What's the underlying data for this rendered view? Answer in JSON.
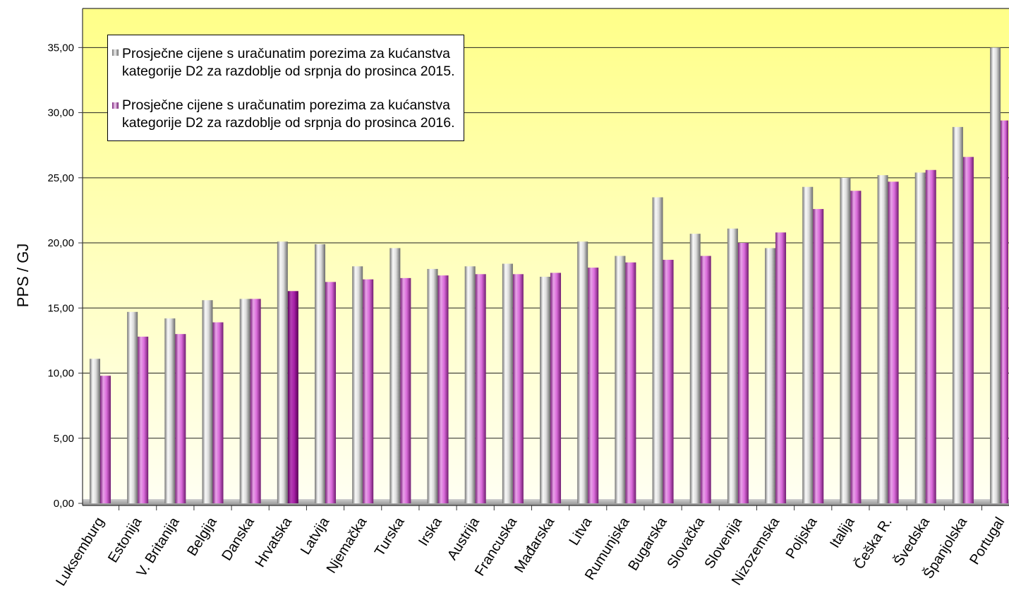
{
  "chart_data": {
    "type": "bar",
    "ylabel": "PPS / GJ",
    "categories": [
      "Luksemburg",
      "Estonija",
      "V. Britanija",
      "Belgija",
      "Danska",
      "Hrvatska",
      "Latvija",
      "Njemačka",
      "Turska",
      "Irska",
      "Austrija",
      "Francuska",
      "Mađarska",
      "Litva",
      "Rumunjska",
      "Bugarska",
      "Slovačka",
      "Slovenija",
      "Nizozemska",
      "Poljska",
      "Italija",
      "Češka R.",
      "Švedska",
      "Španjolska",
      "Portugal"
    ],
    "series": [
      {
        "name": "Prosječne cijene s uračunatim porezima za kućanstva kategorije D2 za razdoblje od srpnja do prosinca 2015.",
        "color": "#C0C0C0",
        "values": [
          11.1,
          14.7,
          14.2,
          15.6,
          15.7,
          20.1,
          19.9,
          18.2,
          19.6,
          18.0,
          18.2,
          18.4,
          17.4,
          20.1,
          19.0,
          23.5,
          20.7,
          21.1,
          19.6,
          24.3,
          25.0,
          25.2,
          25.4,
          28.9,
          35.0
        ]
      },
      {
        "name": "Prosječne cijene s uračunatim porezima za kućanstva kategorije D2 za razdoblje od srpnja do prosinca 2016.",
        "color": "#CC33CC",
        "values": [
          9.8,
          12.8,
          13.0,
          13.9,
          15.7,
          16.3,
          17.0,
          17.2,
          17.3,
          17.5,
          17.6,
          17.6,
          17.7,
          18.1,
          18.5,
          18.7,
          19.0,
          20.0,
          20.8,
          22.6,
          24.0,
          24.7,
          25.6,
          26.6,
          29.4
        ]
      }
    ],
    "highlight_index": 5,
    "highlight_color": "#9A009A",
    "ylim": [
      0,
      38
    ],
    "yticks": [
      0,
      5,
      10,
      15,
      20,
      25,
      30,
      35
    ],
    "ytick_labels": [
      "0,00",
      "5,00",
      "10,00",
      "15,00",
      "20,00",
      "25,00",
      "30,00",
      "35,00"
    ],
    "grid": true,
    "legend_position": "top-left",
    "background_gradient": [
      "#FFFF88",
      "#FFFFF2"
    ],
    "gridline_color": "#222222",
    "floor_color": "#B4B4B4",
    "axis_color": "#333333"
  }
}
